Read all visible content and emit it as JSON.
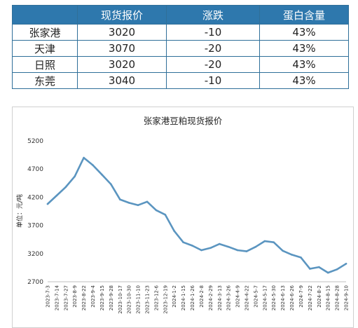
{
  "table": {
    "headers": [
      "",
      "现货报价",
      "涨跌",
      "蛋白含量"
    ],
    "rows": [
      [
        "张家港",
        "3020",
        "-10",
        "43%"
      ],
      [
        "天津",
        "3070",
        "-20",
        "43%"
      ],
      [
        "日照",
        "3020",
        "-20",
        "43%"
      ],
      [
        "东莞",
        "3040",
        "-10",
        "43%"
      ]
    ],
    "header_color": "#2e78ad"
  },
  "chart_data": {
    "type": "line",
    "title": "张家港豆粕现货报价",
    "ylabel": "单位：元/吨",
    "xlabel": "",
    "ylim": [
      2700,
      5200
    ],
    "yticks": [
      2700,
      3200,
      3700,
      4200,
      4700,
      5200
    ],
    "grid": false,
    "line_color": "#5b95c0",
    "x_tick_labels": [
      "2023-7-3",
      "2023-7-14",
      "2023-7-27",
      "2023-8-9",
      "2023-8-22",
      "2023-9-4",
      "2023-9-15",
      "2023-9-28",
      "2023-10-17",
      "2023-10-30",
      "2023-11-10",
      "2023-11-23",
      "2023-12-6",
      "2023-12-19",
      "2024-1-2",
      "2024-1-15",
      "2024-1-26",
      "2024-2-8",
      "2024-2-29",
      "2024-3-13",
      "2024-3-26",
      "2024-4-9",
      "2024-4-22",
      "2024-5-7",
      "2024-5-17",
      "2024-5-30",
      "2024-6-13",
      "2024-6-26",
      "2024-7-9",
      "2024-7-22",
      "2024-8-2",
      "2024-8-15",
      "2024-8-28",
      "2024-9-10"
    ],
    "series": [
      {
        "x": [
          "2023-7-3",
          "2023-7-14",
          "2023-7-27",
          "2023-8-9",
          "2023-8-22",
          "2023-9-4",
          "2023-9-15",
          "2023-9-28",
          "2023-10-17",
          "2023-10-30",
          "2023-11-10",
          "2023-11-23",
          "2023-12-6",
          "2023-12-19",
          "2024-1-2",
          "2024-1-15",
          "2024-1-26",
          "2024-2-8",
          "2024-2-29",
          "2024-3-13",
          "2024-3-26",
          "2024-4-9",
          "2024-4-22",
          "2024-5-7",
          "2024-5-17",
          "2024-5-30",
          "2024-6-13",
          "2024-6-26",
          "2024-7-9",
          "2024-7-22",
          "2024-8-2",
          "2024-8-15",
          "2024-8-28",
          "2024-9-10"
        ],
        "values": [
          4080,
          4230,
          4380,
          4570,
          4900,
          4770,
          4600,
          4430,
          4160,
          4100,
          4060,
          4120,
          3970,
          3890,
          3600,
          3400,
          3340,
          3260,
          3300,
          3370,
          3320,
          3260,
          3240,
          3320,
          3420,
          3400,
          3250,
          3180,
          3130,
          2930,
          2960,
          2860,
          2920,
          3020
        ]
      }
    ]
  }
}
